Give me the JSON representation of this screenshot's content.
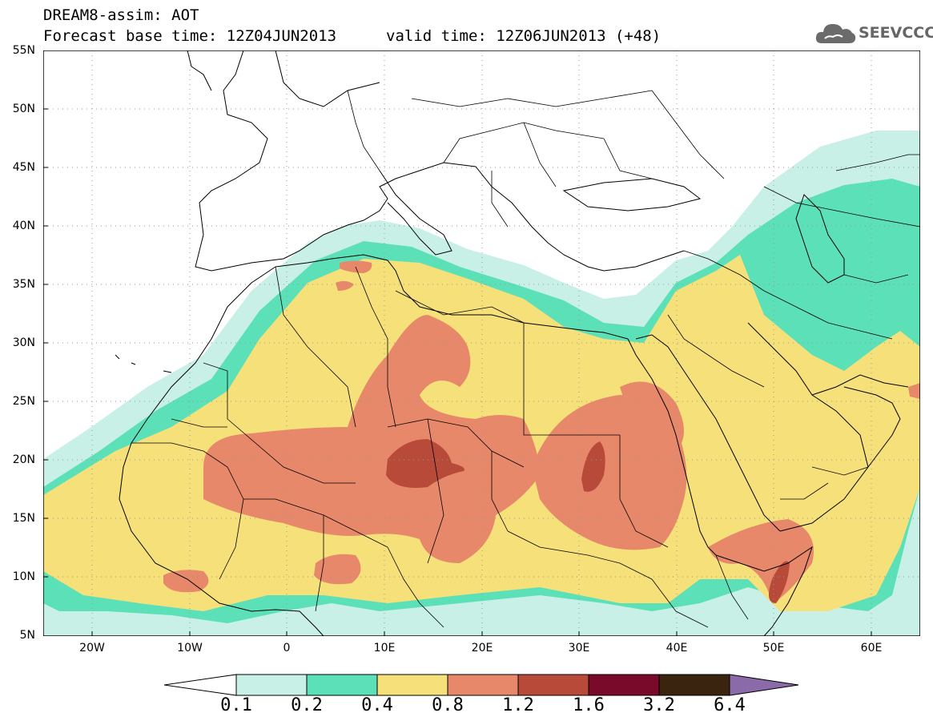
{
  "header": {
    "line1": "DREAM8-assim: AOT",
    "line2": "Forecast base time: 12Z04JUN2013",
    "line3": "valid time: 12Z06JUN2013 (+48)"
  },
  "logo": {
    "text": "SEEVCCC",
    "icon": "cloud-icon",
    "color": "#666666"
  },
  "map": {
    "lat_labels": [
      "55N",
      "50N",
      "45N",
      "40N",
      "35N",
      "30N",
      "25N",
      "20N",
      "15N",
      "10N",
      "5N"
    ],
    "lon_labels": [
      "20W",
      "10W",
      "0",
      "10E",
      "20E",
      "30E",
      "40E",
      "50E",
      "60E"
    ],
    "lat_range": [
      5,
      55
    ],
    "lon_range": [
      -25,
      65
    ]
  },
  "colorbar": {
    "labels": [
      "0.1",
      "0.2",
      "0.4",
      "0.8",
      "1.2",
      "1.6",
      "3.2",
      "6.4"
    ],
    "colors": [
      "#ffffff",
      "#c8f0e6",
      "#5ce0b8",
      "#f5e07a",
      "#e8886a",
      "#b84a3a",
      "#7a0a2a",
      "#3a2410",
      "#8a6aa8"
    ]
  }
}
